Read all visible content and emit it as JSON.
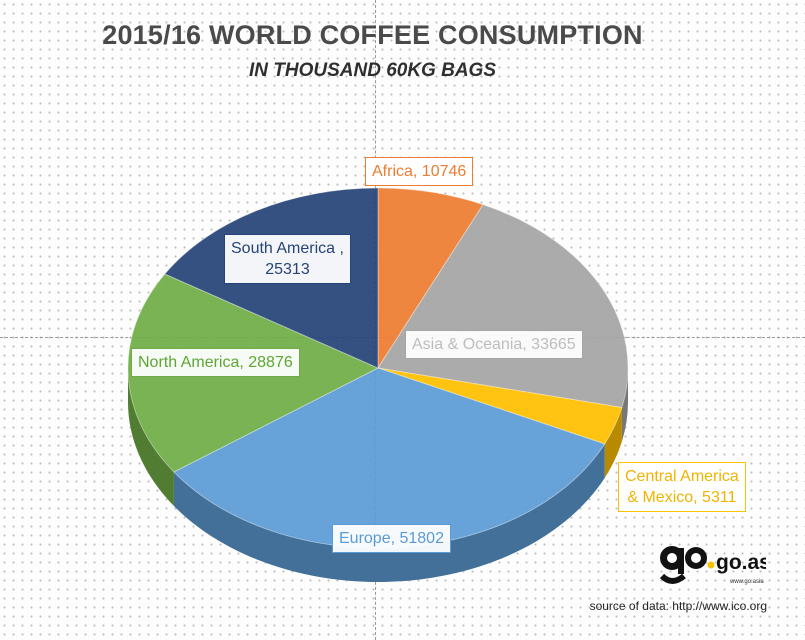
{
  "chart_data": {
    "type": "pie",
    "title": "2015/16  WORLD COFFEE CONSUMPTION",
    "subtitle": "IN THOUSAND 60KG BAGS",
    "slices": [
      {
        "label": "Africa",
        "value": 10746,
        "color": "#ed7d31",
        "text_color": "#ed7d31",
        "display": "Africa, 10746"
      },
      {
        "label": "Asia & Oceania",
        "value": 33665,
        "color": "#a5a5a5",
        "text_color": "#bdbdbd",
        "display": "Asia & Oceania, 33665"
      },
      {
        "label": "Central America & Mexico",
        "value": 5311,
        "color": "#ffc000",
        "text_color": "#f0b400",
        "display": "Central America\n& Mexico, 5311"
      },
      {
        "label": "Europe",
        "value": 51802,
        "color": "#5b9bd5",
        "text_color": "#5b9bd5",
        "display": "Europe, 51802"
      },
      {
        "label": "North America",
        "value": 28876,
        "color": "#70ad47",
        "text_color": "#5ea535",
        "display": "North America, 28876"
      },
      {
        "label": "South America",
        "value": 25313,
        "color": "#264478",
        "text_color": "#264478",
        "display": "South America ,\n25313"
      }
    ]
  },
  "logo": {
    "text": "go.asia",
    "sub": "www.go.asia"
  },
  "source": "source of data: http://www.ico.org"
}
